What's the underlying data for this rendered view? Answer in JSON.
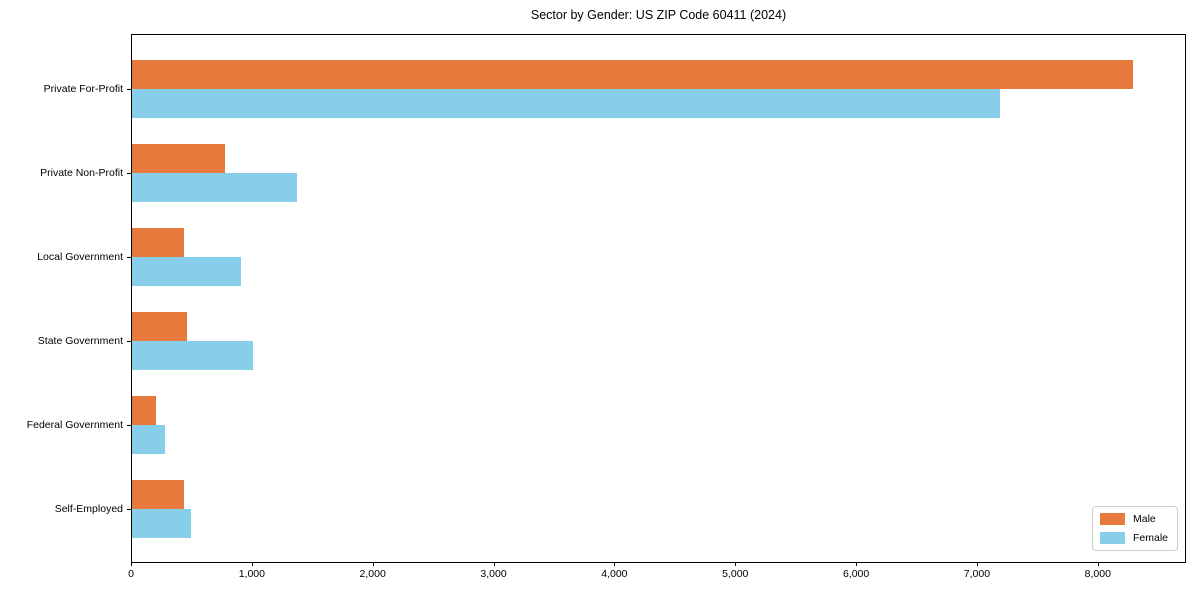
{
  "title": "Sector by Gender: US ZIP Code 60411 (2024)",
  "colors": {
    "male": "#e8793d",
    "female": "#87ceeb",
    "axis": "#000000",
    "legend_border": "#cccccc",
    "background": "#ffffff"
  },
  "legend": {
    "position": "lower right",
    "items": [
      "Male",
      "Female"
    ]
  },
  "chart_data": {
    "type": "bar",
    "orientation": "horizontal",
    "title": "Sector by Gender: US ZIP Code 60411 (2024)",
    "categories": [
      "Private For-Profit",
      "Private Non-Profit",
      "Local Government",
      "State Government",
      "Federal Government",
      "Self-Employed"
    ],
    "series": [
      {
        "name": "Male",
        "color": "#e8793d",
        "values": [
          8300,
          770,
          430,
          460,
          200,
          430
        ]
      },
      {
        "name": "Female",
        "color": "#87ceeb",
        "values": [
          7200,
          1370,
          900,
          1000,
          270,
          490
        ]
      }
    ],
    "xlabel": "",
    "ylabel": "",
    "xlim": [
      0,
      8730
    ],
    "x_ticks": {
      "values": [
        0,
        1000,
        2000,
        3000,
        4000,
        5000,
        6000,
        7000,
        8000
      ],
      "labels": [
        "0",
        "1,000",
        "2,000",
        "3,000",
        "4,000",
        "5,000",
        "6,000",
        "7,000",
        "8,000"
      ]
    },
    "grid": false,
    "legend_position": "lower right"
  }
}
